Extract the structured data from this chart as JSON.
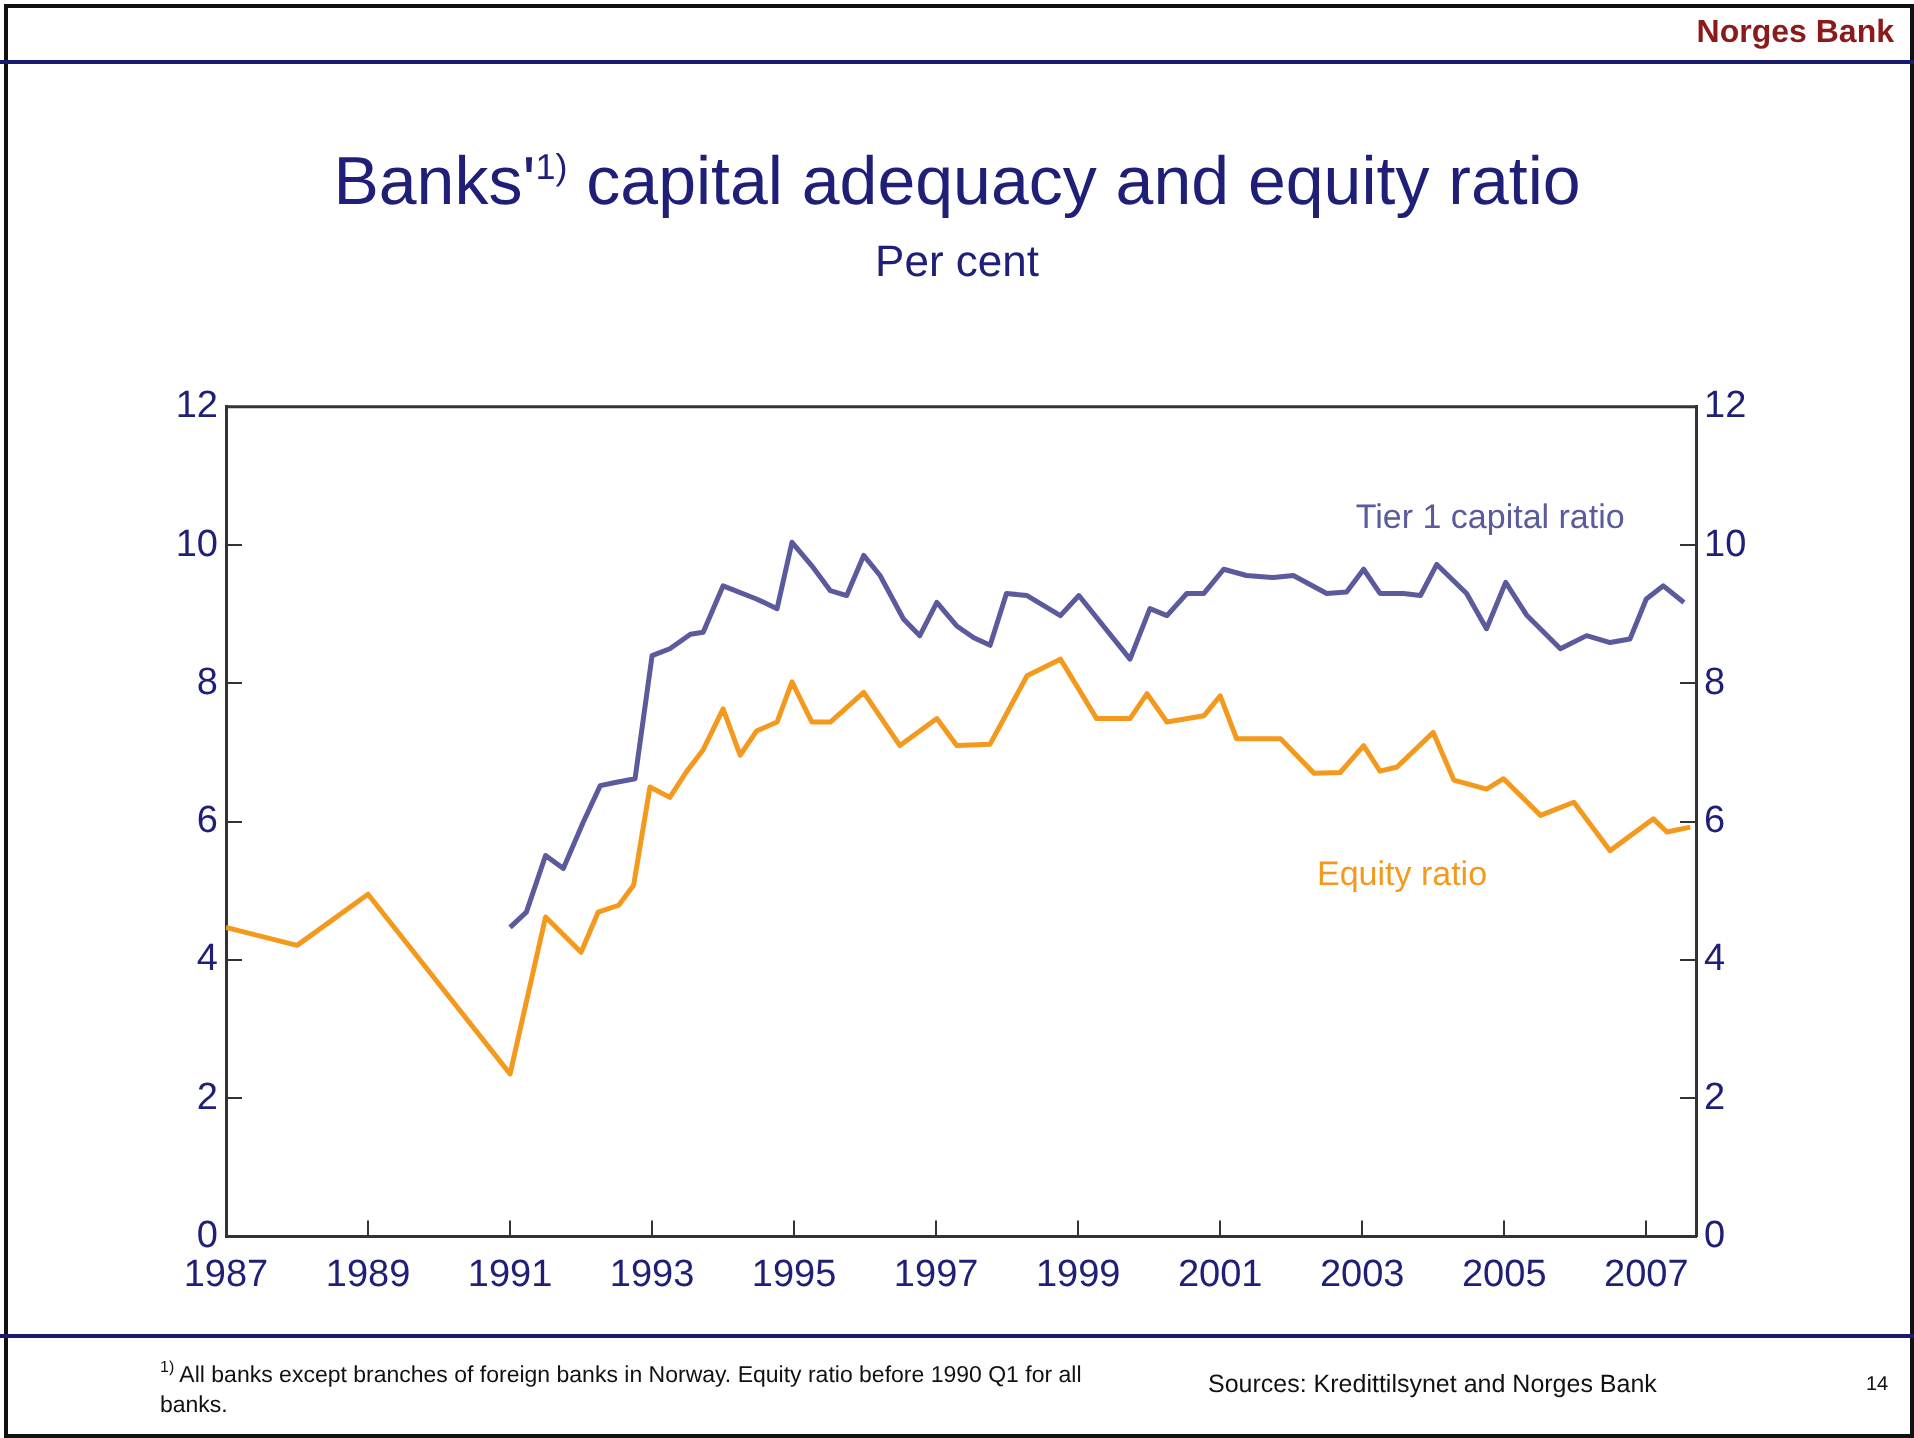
{
  "chart_data": {
    "type": "line",
    "title": "Banks'$^{1)}$ capital adequacy and equity ratio",
    "subtitle": "Per cent",
    "series": [
      {
        "name": "Tier 1 capital ratio",
        "color": "#5a5a9c",
        "x": [
          1991.0,
          1991.23,
          1991.5,
          1991.75,
          1992.03,
          1992.27,
          1992.5,
          1992.76,
          1993.0,
          1993.25,
          1993.54,
          1993.72,
          1994.0,
          1994.47,
          1994.76,
          1994.97,
          1995.25,
          1995.51,
          1995.74,
          1995.98,
          1996.21,
          1996.54,
          1996.77,
          1997.01,
          1997.29,
          1997.53,
          1997.76,
          1997.99,
          1998.28,
          1998.75,
          1999.01,
          1999.73,
          2000.01,
          2000.25,
          2000.53,
          2000.77,
          2001.05,
          2001.37,
          2001.75,
          2002.03,
          2002.5,
          2002.78,
          2003.02,
          2003.25,
          2003.58,
          2003.82,
          2004.05,
          2004.47,
          2004.75,
          2005.02,
          2005.32,
          2005.79,
          2006.16,
          2006.49,
          2006.77,
          2007.0,
          2007.24,
          2007.53
        ],
        "values": [
          4.47,
          4.69,
          5.51,
          5.32,
          5.99,
          6.52,
          6.57,
          6.62,
          8.4,
          8.5,
          8.71,
          8.74,
          9.41,
          9.22,
          9.08,
          10.04,
          9.7,
          9.34,
          9.27,
          9.85,
          9.56,
          8.93,
          8.69,
          9.17,
          8.83,
          8.66,
          8.55,
          9.3,
          9.27,
          8.98,
          9.27,
          8.35,
          9.08,
          8.98,
          9.3,
          9.3,
          9.65,
          9.56,
          9.53,
          9.56,
          9.3,
          9.32,
          9.65,
          9.3,
          9.3,
          9.27,
          9.72,
          9.3,
          8.79,
          9.46,
          8.98,
          8.5,
          8.69,
          8.59,
          8.64,
          9.22,
          9.41,
          9.17
        ]
      },
      {
        "name": "Equity ratio",
        "color": "#f39a1e",
        "x": [
          1987.0,
          1988.0,
          1989.0,
          1991.0,
          1991.5,
          1992.0,
          1992.24,
          1992.53,
          1992.74,
          1992.97,
          1993.25,
          1993.49,
          1993.72,
          1994.0,
          1994.24,
          1994.47,
          1994.76,
          1994.97,
          1995.25,
          1995.51,
          1995.98,
          1996.49,
          1997.01,
          1997.29,
          1997.76,
          1998.28,
          1998.75,
          1999.26,
          1999.73,
          1999.97,
          2000.25,
          2000.77,
          2001.0,
          2001.23,
          2001.85,
          2002.32,
          2002.69,
          2003.02,
          2003.25,
          2003.49,
          2004.0,
          2004.29,
          2004.75,
          2004.99,
          2005.51,
          2005.98,
          2006.49,
          2007.1,
          2007.29,
          2007.62
        ],
        "values": [
          4.47,
          4.21,
          4.95,
          2.35,
          4.62,
          4.11,
          4.69,
          4.79,
          5.08,
          6.5,
          6.35,
          6.73,
          7.04,
          7.63,
          6.96,
          7.31,
          7.44,
          8.02,
          7.44,
          7.44,
          7.87,
          7.1,
          7.49,
          7.1,
          7.12,
          8.11,
          8.35,
          7.49,
          7.49,
          7.85,
          7.44,
          7.53,
          7.82,
          7.2,
          7.2,
          6.7,
          6.71,
          7.1,
          6.73,
          6.79,
          7.29,
          6.6,
          6.47,
          6.62,
          6.09,
          6.28,
          5.58,
          6.04,
          5.85,
          5.92
        ]
      }
    ],
    "xlim": [
      1987,
      2007.7
    ],
    "xticks": [
      1987,
      1989,
      1991,
      1993,
      1995,
      1997,
      1999,
      2001,
      2003,
      2005,
      2007
    ],
    "ylim": [
      0,
      12
    ],
    "yticks": [
      0,
      2,
      4,
      6,
      8,
      10,
      12
    ],
    "y2lim": [
      0,
      12
    ],
    "y2ticks": [
      0,
      2,
      4,
      6,
      8,
      10,
      12
    ],
    "grid": false,
    "legend": false,
    "marker": "none",
    "line_style": "solid",
    "annotations": [
      "Norges Bank",
      "$^{1)}$ All banks except branches of foreign banks in Norway. Equity ratio before 1990 Q1 for all banks.",
      "Sources: Kredittilsynet and Norges Bank",
      "14"
    ]
  }
}
